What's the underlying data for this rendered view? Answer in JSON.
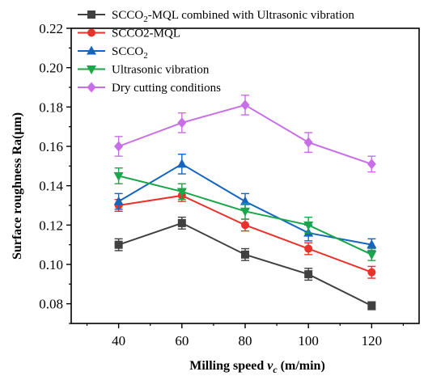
{
  "chart_data": {
    "type": "line",
    "xlabel_prefix": "Milling speed ",
    "xlabel_var": "v",
    "xlabel_sub": "c",
    "xlabel_unit": " (m/min)",
    "ylabel": "Surface roughness Ra(μm)",
    "x": [
      40,
      60,
      80,
      100,
      120
    ],
    "xticks": [
      "40",
      "60",
      "80",
      "100",
      "120"
    ],
    "xlim": [
      25,
      135
    ],
    "ylim": [
      0.07,
      0.22
    ],
    "yticks": [
      "0.08",
      "0.10",
      "0.12",
      "0.14",
      "0.16",
      "0.18",
      "0.20",
      "0.22"
    ],
    "legend_position": "top-left",
    "grid": false,
    "series": [
      {
        "name": "SCCO2-MQL combined with Ultrasonic vibration",
        "label_main": "SCCO",
        "label_sub": "2",
        "label_rest": "-MQL combined with Ultrasonic vibration",
        "color": "#404040",
        "marker": "square",
        "values": [
          0.11,
          0.121,
          0.105,
          0.095,
          0.079
        ],
        "errors": [
          0.003,
          0.003,
          0.003,
          0.003,
          0.002
        ]
      },
      {
        "name": "SCCO2-MQL",
        "label_main": "SCCO2-MQL",
        "label_sub": "",
        "label_rest": "",
        "color": "#e8322b",
        "marker": "circle",
        "values": [
          0.13,
          0.135,
          0.12,
          0.108,
          0.096
        ],
        "errors": [
          0.003,
          0.003,
          0.003,
          0.003,
          0.003
        ]
      },
      {
        "name": "SCCO2",
        "label_main": "SCCO",
        "label_sub": "2",
        "label_rest": "",
        "color": "#1565c0",
        "marker": "triangle-up",
        "values": [
          0.132,
          0.151,
          0.132,
          0.116,
          0.11
        ],
        "errors": [
          0.004,
          0.005,
          0.004,
          0.004,
          0.003
        ]
      },
      {
        "name": "Ultrasonic vibration",
        "label_main": "Ultrasonic vibration",
        "label_sub": "",
        "label_rest": "",
        "color": "#1aa64a",
        "marker": "triangle-down",
        "values": [
          0.145,
          0.137,
          0.127,
          0.12,
          0.105
        ],
        "errors": [
          0.004,
          0.004,
          0.004,
          0.004,
          0.003
        ]
      },
      {
        "name": "Dry cutting conditions",
        "label_main": "Dry cutting conditions",
        "label_sub": "",
        "label_rest": "",
        "color": "#c86ee6",
        "marker": "diamond",
        "values": [
          0.16,
          0.172,
          0.181,
          0.162,
          0.151
        ],
        "errors": [
          0.005,
          0.005,
          0.005,
          0.005,
          0.004
        ]
      }
    ]
  }
}
